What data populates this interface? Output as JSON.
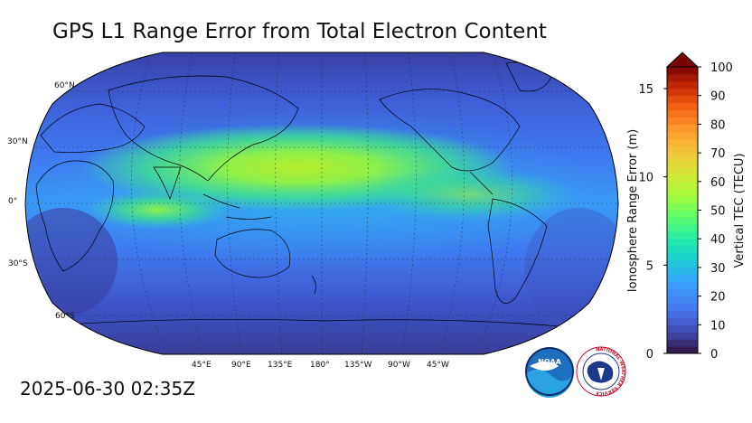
{
  "title": "GPS L1 Range Error from Total Electron Content",
  "timestamp": "2025-06-30 02:35Z",
  "map": {
    "projection": "Robinson, centered on 180°",
    "lat_labels": [
      "60°N",
      "30°N",
      "0°",
      "30°S",
      "60°S"
    ],
    "lon_labels": [
      "45°E",
      "90°E",
      "135°E",
      "180°",
      "135°W",
      "90°W",
      "45°W"
    ]
  },
  "colorbar": {
    "left_axis": {
      "label": "Ionosphere Range Error (m)",
      "ticks": [
        "0",
        "5",
        "10",
        "15"
      ],
      "range": [
        0,
        16.23
      ]
    },
    "right_axis": {
      "label": "Vertical TEC (TECU)",
      "ticks": [
        "0",
        "10",
        "20",
        "30",
        "40",
        "50",
        "60",
        "70",
        "80",
        "90",
        "100"
      ],
      "range": [
        0,
        100
      ]
    },
    "extend": "max",
    "colormap": "turbo"
  },
  "logos": {
    "noaa": "NOAA",
    "nws": "NATIONAL WEATHER SERVICE"
  }
}
